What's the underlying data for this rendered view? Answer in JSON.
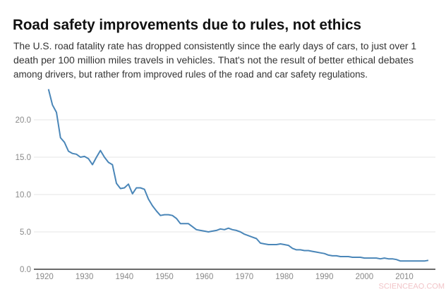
{
  "title": "Road safety improvements due to rules, not ethics",
  "subtitle_lines": [
    "The U.S. road fatality rate has dropped consistently since the early days of cars, to just over 1",
    "death per 100 million miles travels in vehicles. That's not the result of better ethical debates",
    "among drivers, but rather from improved rules of the road and car safety regulations."
  ],
  "watermark": "SCIENCEAQ.COM",
  "colors": {
    "line": "#4a86b8",
    "grid": "#e6e6e6",
    "axis": "#111111",
    "tick_text": "#888888"
  },
  "chart_data": {
    "type": "line",
    "title": "Road safety improvements due to rules, not ethics",
    "xlabel": "",
    "ylabel": "",
    "xlim": [
      1918,
      2018
    ],
    "ylim": [
      0,
      24
    ],
    "grid": true,
    "x_ticks": [
      "1920",
      "1930",
      "1940",
      "1950",
      "1960",
      "1970",
      "1980",
      "1990",
      "2000",
      "2010"
    ],
    "y_ticks": [
      "0.0",
      "5.0",
      "10.0",
      "15.0",
      "20.0"
    ],
    "x": [
      1921,
      1922,
      1923,
      1924,
      1925,
      1926,
      1927,
      1928,
      1929,
      1930,
      1931,
      1932,
      1933,
      1934,
      1935,
      1936,
      1937,
      1938,
      1939,
      1940,
      1941,
      1942,
      1943,
      1944,
      1945,
      1946,
      1947,
      1948,
      1949,
      1950,
      1951,
      1952,
      1953,
      1954,
      1955,
      1956,
      1957,
      1958,
      1959,
      1960,
      1961,
      1962,
      1963,
      1964,
      1965,
      1966,
      1967,
      1968,
      1969,
      1970,
      1971,
      1972,
      1973,
      1974,
      1975,
      1976,
      1977,
      1978,
      1979,
      1980,
      1981,
      1982,
      1983,
      1984,
      1985,
      1986,
      1987,
      1988,
      1989,
      1990,
      1991,
      1992,
      1993,
      1994,
      1995,
      1996,
      1997,
      1998,
      1999,
      2000,
      2001,
      2002,
      2003,
      2004,
      2005,
      2006,
      2007,
      2008,
      2009,
      2010,
      2011,
      2012,
      2013,
      2014,
      2015,
      2016
    ],
    "y": [
      24.1,
      22.0,
      21.0,
      17.6,
      17.0,
      15.8,
      15.5,
      15.4,
      15.0,
      15.1,
      14.8,
      14.0,
      15.0,
      15.9,
      15.0,
      14.3,
      14.0,
      11.5,
      10.8,
      10.9,
      11.4,
      10.1,
      10.9,
      10.9,
      10.7,
      9.4,
      8.5,
      7.8,
      7.2,
      7.3,
      7.3,
      7.2,
      6.8,
      6.1,
      6.1,
      6.1,
      5.7,
      5.3,
      5.2,
      5.1,
      5.0,
      5.1,
      5.2,
      5.4,
      5.3,
      5.5,
      5.3,
      5.2,
      5.0,
      4.7,
      4.5,
      4.3,
      4.1,
      3.5,
      3.4,
      3.3,
      3.3,
      3.3,
      3.4,
      3.3,
      3.2,
      2.8,
      2.6,
      2.6,
      2.5,
      2.5,
      2.4,
      2.3,
      2.2,
      2.1,
      1.9,
      1.8,
      1.8,
      1.7,
      1.7,
      1.7,
      1.6,
      1.6,
      1.6,
      1.5,
      1.5,
      1.5,
      1.5,
      1.4,
      1.5,
      1.4,
      1.4,
      1.3,
      1.1,
      1.1,
      1.1,
      1.1,
      1.1,
      1.1,
      1.1,
      1.2
    ]
  }
}
